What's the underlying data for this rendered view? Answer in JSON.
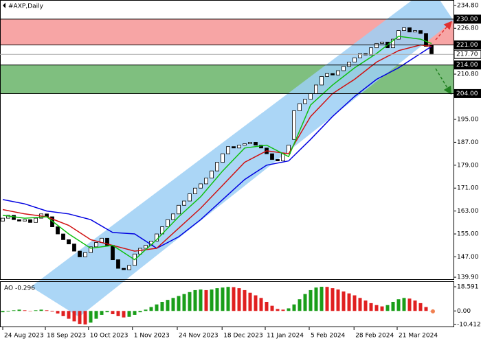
{
  "chart_data": [
    {
      "type": "candlestick",
      "title": "#AXP,Daily",
      "xlim": [
        -0.5,
        82
      ],
      "ylim": [
        139.2,
        236.2
      ],
      "yticks": [
        {
          "value": 234.8,
          "label": "234.80"
        },
        {
          "value": 226.8,
          "label": "226.80"
        },
        {
          "value": 210.8,
          "label": "210.80"
        },
        {
          "value": 195,
          "label": "195.00"
        },
        {
          "value": 187,
          "label": "187.00"
        },
        {
          "value": 179,
          "label": "179.00"
        },
        {
          "value": 171,
          "label": "171.00"
        },
        {
          "value": 163,
          "label": "163.00"
        },
        {
          "value": 155,
          "label": "155.00"
        },
        {
          "value": 147,
          "label": "147.00"
        },
        {
          "value": 139.9,
          "label": "139.90"
        }
      ],
      "xticks": [
        {
          "value": 0,
          "label": "24 Aug 2023"
        },
        {
          "value": 7.75,
          "label": "18 Sep 2023"
        },
        {
          "value": 15.6,
          "label": "10 Oct 2023"
        },
        {
          "value": 23.6,
          "label": "1 Nov 2023"
        },
        {
          "value": 31.75,
          "label": "24 Nov 2023"
        },
        {
          "value": 39.9,
          "label": "18 Dec 2023"
        },
        {
          "value": 47.75,
          "label": "11 Jan 2024"
        },
        {
          "value": 55.75,
          "label": "5 Feb 2024"
        },
        {
          "value": 63.9,
          "label": "28 Feb 2024"
        },
        {
          "value": 71.75,
          "label": "21 Mar 2024"
        }
      ],
      "open": [
        159.5,
        160.5,
        161.5,
        160,
        159.5,
        160,
        159,
        160.5,
        162,
        161,
        157.5,
        155,
        153,
        151.5,
        149,
        147,
        148.5,
        150.5,
        152,
        153.5,
        151,
        146,
        143,
        142.5,
        144,
        148,
        150,
        151,
        152.5,
        155,
        157.5,
        160,
        162,
        165,
        166.5,
        169,
        171,
        172.5,
        174.5,
        177,
        180,
        183,
        185.5,
        185,
        186,
        186.5,
        187,
        186,
        185,
        183,
        181,
        180.5,
        183,
        188,
        198,
        200.5,
        202,
        204,
        207,
        210,
        211,
        210.5,
        212,
        213.5,
        215,
        216.5,
        218,
        217.5,
        220,
        221.5,
        222,
        220,
        223,
        226,
        227,
        225.5,
        226,
        225,
        221
      ],
      "close": [
        160.5,
        161.5,
        160,
        159.5,
        160,
        159,
        160.5,
        162,
        161,
        157.5,
        155,
        153,
        151.5,
        149,
        147,
        148.5,
        150.5,
        152,
        153.5,
        151,
        146,
        143,
        142.5,
        144,
        148,
        150,
        151,
        152.5,
        155,
        157.5,
        160,
        162,
        165,
        166.5,
        169,
        171,
        172.5,
        174.5,
        177,
        180,
        183,
        185.5,
        185,
        186,
        186.5,
        187,
        186,
        185,
        183,
        181,
        180.5,
        183,
        186,
        198,
        200.5,
        202,
        204,
        207,
        210,
        211,
        210.5,
        212,
        213.5,
        215,
        216.5,
        218,
        217.5,
        220,
        221.5,
        222,
        220,
        223,
        226,
        227,
        225.5,
        226,
        225,
        220.5,
        217.7
      ],
      "up_color": "#ffffff",
      "down_color": "#000000",
      "series": [
        {
          "color": "#0000e0",
          "x": [
            0,
            4,
            8,
            12,
            16,
            20,
            24,
            28,
            32,
            36,
            40,
            44,
            48,
            52,
            56,
            60,
            64,
            68,
            72,
            76,
            78
          ],
          "values": [
            167,
            165.5,
            163,
            162,
            160,
            155.5,
            155,
            150,
            154,
            160,
            167,
            174,
            179,
            180.5,
            188,
            196,
            203,
            209,
            213,
            218,
            220.5
          ]
        },
        {
          "color": "#d01010",
          "x": [
            0,
            4,
            8,
            12,
            16,
            20,
            24,
            28,
            32,
            36,
            40,
            44,
            48,
            52,
            56,
            60,
            64,
            68,
            72,
            76,
            78
          ],
          "values": [
            163.5,
            162,
            161,
            158,
            153,
            151,
            149,
            150,
            157,
            164,
            172,
            180,
            184,
            183,
            196,
            204,
            209,
            215,
            219,
            221,
            220.5
          ]
        },
        {
          "color": "#10c010",
          "x": [
            0,
            4,
            8,
            12,
            16,
            20,
            24,
            28,
            32,
            36,
            40,
            44,
            48,
            52,
            56,
            60,
            64,
            68,
            72,
            76,
            78
          ],
          "values": [
            161.5,
            160.5,
            161,
            155,
            150,
            151,
            146,
            153,
            161,
            168,
            177,
            185,
            186,
            182,
            200,
            207,
            213,
            218,
            224,
            223,
            221.5
          ]
        }
      ],
      "levels": [
        {
          "value": 230,
          "label": "230.00"
        },
        {
          "value": 221,
          "label": "221.00"
        },
        {
          "value": 217.7,
          "label": "217.70"
        },
        {
          "value": 214,
          "label": "214.00"
        },
        {
          "value": 204,
          "label": "204.00"
        }
      ],
      "zones": [
        {
          "from": 221,
          "to": 230,
          "color": "#f7a5a5"
        },
        {
          "from": 204,
          "to": 214,
          "color": "#7fbf7f"
        }
      ]
    },
    {
      "type": "bar",
      "title": "AO -0.296",
      "ylim": [
        -12,
        22.3
      ],
      "yticks": [
        {
          "value": 18.591,
          "label": "18.591"
        },
        {
          "value": 0,
          "label": "0.00"
        },
        {
          "value": -10.412,
          "label": "-10.412"
        }
      ],
      "values": [
        -1,
        -0.5,
        0.5,
        1,
        0.5,
        0,
        0.5,
        1,
        0.5,
        -0.5,
        -2,
        -4,
        -6,
        -8,
        -10,
        -10.4,
        -9,
        -6,
        -3,
        -1,
        -2.5,
        -4,
        -5,
        -4.5,
        -3,
        -1,
        1,
        3,
        5,
        7,
        8.5,
        10,
        11.5,
        13,
        14.5,
        16,
        16.5,
        16,
        16.5,
        17.5,
        18,
        18.5,
        18.3,
        17.5,
        16,
        14,
        12,
        10,
        7,
        4,
        1.5,
        1,
        2,
        5,
        9,
        13,
        16,
        18,
        18.6,
        18.5,
        17.5,
        16.5,
        15,
        13.5,
        12,
        10,
        8,
        6,
        4.5,
        3.5,
        4.5,
        7,
        9,
        10,
        9.5,
        8,
        6,
        3,
        -0.296
      ],
      "up_color": "#1a9e1a",
      "down_color": "#e02020",
      "last_color": "#f08050"
    }
  ]
}
